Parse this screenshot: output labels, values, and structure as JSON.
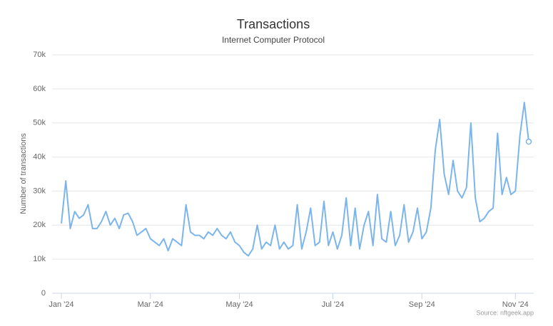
{
  "chart_data": {
    "type": "line",
    "title": "Transactions",
    "subtitle": "Internet Computer Protocol",
    "y_label": "Number of transactions",
    "source": "Source: nftgeek.app",
    "categories": [
      "Jan '24",
      null,
      null,
      null,
      null,
      null,
      null,
      null,
      null,
      null,
      null,
      null,
      null,
      null,
      null,
      null,
      null,
      null,
      null,
      null,
      "Mar '24",
      null,
      null,
      null,
      null,
      null,
      null,
      null,
      null,
      null,
      null,
      null,
      null,
      null,
      null,
      null,
      null,
      null,
      null,
      null,
      "May '24",
      null,
      null,
      null,
      null,
      null,
      null,
      null,
      null,
      null,
      null,
      null,
      null,
      null,
      null,
      null,
      null,
      null,
      null,
      null,
      null,
      "Jul '24",
      null,
      null,
      null,
      null,
      null,
      null,
      null,
      null,
      null,
      null,
      null,
      null,
      null,
      null,
      null,
      null,
      null,
      null,
      null,
      "Sep '24",
      null,
      null,
      null,
      null,
      null,
      null,
      null,
      null,
      null,
      null,
      null,
      null,
      null,
      null,
      null,
      null,
      null,
      null,
      null,
      null,
      "Nov '24",
      null,
      null,
      null
    ],
    "series": [
      {
        "name": "Transactions",
        "color": "#7cb5ec",
        "values": [
          20500,
          33000,
          19000,
          24000,
          22000,
          23000,
          26000,
          19000,
          19000,
          21000,
          24000,
          20000,
          22000,
          19000,
          23000,
          23500,
          21000,
          17000,
          18000,
          19000,
          16000,
          15000,
          14000,
          16000,
          12500,
          16000,
          15000,
          14000,
          26000,
          18000,
          17000,
          17000,
          16000,
          18000,
          17000,
          19000,
          17000,
          16000,
          18000,
          15000,
          14000,
          12000,
          11000,
          13000,
          20000,
          13000,
          15000,
          14000,
          20000,
          13000,
          15000,
          13000,
          14000,
          26000,
          13000,
          18000,
          25000,
          14000,
          15000,
          27000,
          14000,
          18000,
          13000,
          17000,
          28000,
          14000,
          25000,
          13000,
          20000,
          24000,
          14000,
          29000,
          16000,
          15000,
          24000,
          14000,
          17000,
          26000,
          15000,
          18000,
          25000,
          16000,
          18000,
          25000,
          42000,
          51000,
          35000,
          29000,
          39000,
          30000,
          28000,
          31000,
          50000,
          28000,
          21000,
          22000,
          24000,
          25000,
          47000,
          29000,
          34000,
          29000,
          30000,
          46000,
          56000,
          44500
        ]
      }
    ],
    "ylim": [
      0,
      70000
    ],
    "yticks": [
      0,
      {
        "value": 10000,
        "label": "10k"
      },
      {
        "value": 20000,
        "label": "20k"
      },
      {
        "value": 30000,
        "label": "30k"
      },
      {
        "value": 40000,
        "label": "40k"
      },
      {
        "value": 50000,
        "label": "50k"
      },
      {
        "value": 60000,
        "label": "60k"
      },
      {
        "value": 70000,
        "label": "70k"
      }
    ],
    "grid": true
  }
}
